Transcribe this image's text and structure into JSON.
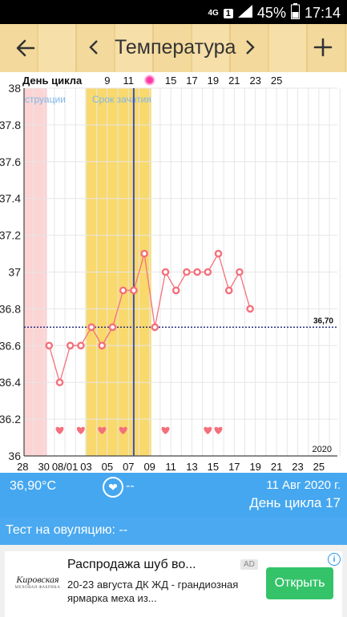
{
  "status_bar": {
    "network": "4G",
    "sim": "1",
    "battery": "45%",
    "time": "17:14"
  },
  "toolbar": {
    "title": "Температура",
    "back_icon": "arrow-left-icon",
    "prev_icon": "chevron-left-icon",
    "next_icon": "chevron-right-icon",
    "add_icon": "plus-icon"
  },
  "chart_data": {
    "type": "line",
    "top_axis_label": "День цикла",
    "top_ticks": [
      "9",
      "11",
      "15",
      "17",
      "19",
      "21",
      "23",
      "25"
    ],
    "top_marker_day": "13",
    "period_label": "струации",
    "fertile_label": "Срок зачатия",
    "ylim": [
      36.0,
      38.0
    ],
    "y_ticks": [
      "38",
      "37.8",
      "37.6",
      "37.4",
      "37.2",
      "37",
      "36.8",
      "36.6",
      "36.4",
      "36.2",
      "36"
    ],
    "x_ticks": [
      "28",
      "30",
      "08/01",
      "03",
      "05",
      "07",
      "09",
      "11",
      "13",
      "15",
      "17",
      "19",
      "21",
      "23",
      "25"
    ],
    "year": "2020",
    "coverline": 36.7,
    "coverline_label": "36,70",
    "series": [
      {
        "x": [
          "30",
          "31",
          "08/01",
          "02",
          "03",
          "04",
          "05",
          "06",
          "07",
          "08",
          "09",
          "10",
          "11",
          "12",
          "13",
          "14",
          "15",
          "16",
          "17",
          "18"
        ],
        "values": [
          36.6,
          36.4,
          36.6,
          36.6,
          36.7,
          36.6,
          36.7,
          36.9,
          36.9,
          37.1,
          36.7,
          37.0,
          36.9,
          37.0,
          37.0,
          37.0,
          37.1,
          36.9,
          37.0,
          36.8
        ],
        "color": "#f4707c"
      }
    ],
    "hearts_days": [
      "31",
      "02",
      "04",
      "06",
      "10",
      "14",
      "15"
    ],
    "period_color": "#fcd4d4",
    "fertile_color": "#f9d96c",
    "today_line_color": "#3f51b5"
  },
  "info_bar": {
    "temperature": "36,90°C",
    "heart_icon": "heart-icon",
    "dash": "--",
    "date": "11 Авг 2020 г.",
    "cycle_day": "День цикла 17"
  },
  "ovulation": {
    "label": "Тест на овуляцию: --"
  },
  "ad": {
    "logo_text": "Кировская",
    "logo_sub": "МЕХОВАЯ ФАБРИКА",
    "title": "Распродажа шуб во...",
    "badge": "AD",
    "description": "20-23 августа ДК ЖД - грандиозная ярмарка меха из...",
    "button": "Открыть",
    "info_icon": "info-icon"
  }
}
